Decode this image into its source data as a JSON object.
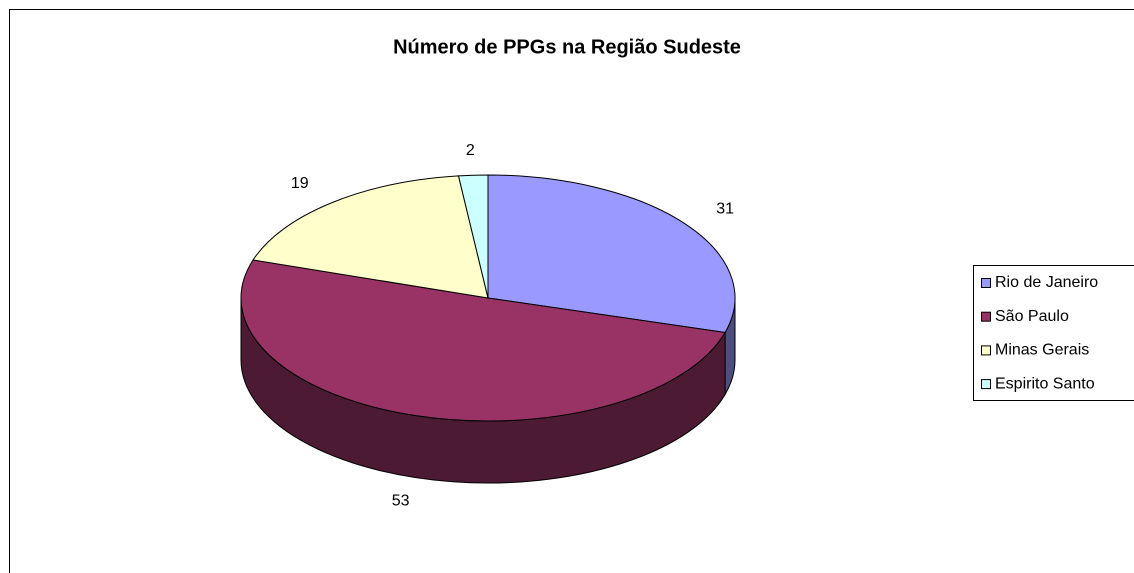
{
  "chart_data": {
    "type": "pie3d",
    "title": "Número de PPGs na Região Sudeste",
    "categories": [
      "Rio de Janeiro",
      "São Paulo",
      "Minas Gerais",
      "Espirito Santo"
    ],
    "values": [
      31,
      53,
      19,
      2
    ],
    "colors": [
      "#9999ff",
      "#993366",
      "#ffffcc",
      "#ccffff"
    ],
    "legend": "right"
  }
}
